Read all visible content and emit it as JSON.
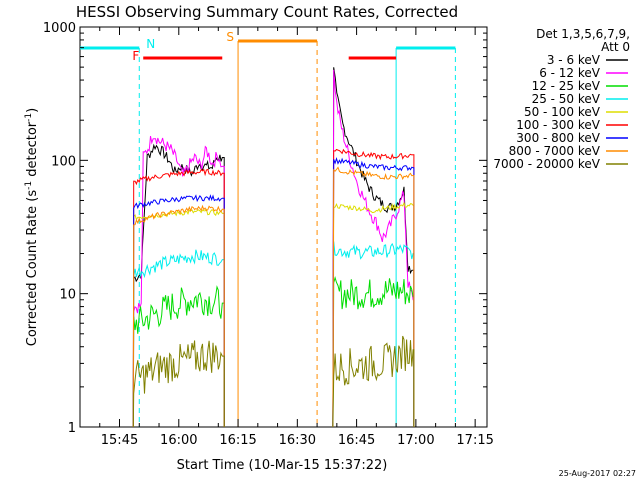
{
  "chart_data": {
    "type": "line",
    "title": "HESSI Observing Summary Count Rates, Corrected",
    "xlabel": "Start Time (10-Mar-15 15:37:22)",
    "ylabel": "Corrected Count Rate (s⁻¹ detector⁻¹)",
    "ylabel_main": "Corrected Count Rate (s",
    "ylabel_sup1": "-1",
    "ylabel_mid": " detector",
    "ylabel_sup2": "-1",
    "ylabel_end": ")",
    "yscale": "log",
    "ylim": [
      1,
      1000
    ],
    "yticks": [
      {
        "value": 1,
        "label": "1"
      },
      {
        "value": 10,
        "label": "10"
      },
      {
        "value": 100,
        "label": "100"
      },
      {
        "value": 1000,
        "label": "1000"
      }
    ],
    "xlim_minutes": [
      0,
      103
    ],
    "xticks": [
      {
        "minute": 10,
        "label": "15:45"
      },
      {
        "minute": 25,
        "label": "16:00"
      },
      {
        "minute": 40,
        "label": "16:15"
      },
      {
        "minute": 55,
        "label": "16:30"
      },
      {
        "minute": 70,
        "label": "16:45"
      },
      {
        "minute": 85,
        "label": "17:00"
      },
      {
        "minute": 100,
        "label": "17:15"
      }
    ],
    "legend_header": [
      "Det 1,3,5,6,7,9,",
      "Att 0"
    ],
    "legend_position": "top-right",
    "series": [
      {
        "name": "3 - 6 keV",
        "color": "#000000"
      },
      {
        "name": "6 - 12 keV",
        "color": "#ff00ff"
      },
      {
        "name": "12 - 25 keV",
        "color": "#00dd00"
      },
      {
        "name": "25 - 50 keV",
        "color": "#00eeee"
      },
      {
        "name": "50 - 100 keV",
        "color": "#dddd00"
      },
      {
        "name": "100 - 300 keV",
        "color": "#ff0000"
      },
      {
        "name": "300 - 800 keV",
        "color": "#0000ff"
      },
      {
        "name": "800 - 7000 keV",
        "color": "#ff8c00"
      },
      {
        "name": "7000 - 20000 keV",
        "color": "#808000"
      }
    ],
    "intervals": [
      {
        "label": "N",
        "color": "#00eeee",
        "minutes": [
          [
            -2,
            15
          ],
          [
            80,
            95
          ]
        ]
      },
      {
        "label": "F",
        "color": "#ff0000",
        "minutes": [
          [
            16,
            36
          ],
          [
            68,
            80
          ]
        ]
      },
      {
        "label": "S",
        "color": "#ff8c00",
        "minutes": [
          [
            40,
            60
          ]
        ]
      }
    ],
    "segments": [
      {
        "name": "3 - 6 keV",
        "minutes": [
          [
            13.5,
            36.5
          ],
          [
            64,
            84.5
          ]
        ],
        "points": [
          [
            13.6,
            13
          ],
          [
            15.5,
            14
          ],
          [
            17,
            105
          ],
          [
            19,
            130
          ],
          [
            21,
            115
          ],
          [
            22.5,
            100
          ],
          [
            24,
            82
          ],
          [
            25.5,
            90
          ],
          [
            27,
            85
          ],
          [
            28.5,
            80
          ],
          [
            30,
            95
          ],
          [
            32,
            90
          ],
          [
            33.5,
            88
          ],
          [
            34.5,
            105
          ],
          [
            36,
            105
          ],
          [
            64.2,
            520
          ],
          [
            65,
            300
          ],
          [
            66.5,
            185
          ],
          [
            68,
            140
          ],
          [
            70,
            100
          ],
          [
            72,
            72
          ],
          [
            73.5,
            60
          ],
          [
            75,
            52
          ],
          [
            76.5,
            47
          ],
          [
            78,
            44
          ],
          [
            80,
            46
          ],
          [
            82,
            60
          ],
          [
            83,
            16
          ],
          [
            84.3,
            15
          ]
        ]
      },
      {
        "name": "6 - 12 keV",
        "minutes": [
          [
            13.5,
            36.5
          ],
          [
            64,
            84.5
          ]
        ],
        "points": [
          [
            13.6,
            8
          ],
          [
            15.5,
            8
          ],
          [
            16,
            105
          ],
          [
            17.5,
            130
          ],
          [
            18.5,
            160
          ],
          [
            20,
            140
          ],
          [
            21.5,
            130
          ],
          [
            23,
            120
          ],
          [
            24.5,
            100
          ],
          [
            26,
            75
          ],
          [
            27.5,
            90
          ],
          [
            29,
            105
          ],
          [
            30.5,
            90
          ],
          [
            32,
            120
          ],
          [
            33.5,
            95
          ],
          [
            35,
            110
          ],
          [
            36,
            90
          ],
          [
            64.2,
            460
          ],
          [
            65,
            260
          ],
          [
            66.5,
            160
          ],
          [
            68,
            110
          ],
          [
            70,
            70
          ],
          [
            72,
            50
          ],
          [
            74,
            38
          ],
          [
            75.5,
            32
          ],
          [
            76.5,
            26
          ],
          [
            78,
            30
          ],
          [
            80,
            40
          ],
          [
            82,
            56
          ],
          [
            83,
            12
          ],
          [
            84.3,
            9
          ]
        ]
      },
      {
        "name": "12 - 25 keV",
        "minutes": [
          [
            13.5,
            36.5
          ],
          [
            64,
            84.5
          ]
        ],
        "points": [
          [
            13.6,
            6
          ],
          [
            16,
            6.3
          ],
          [
            18,
            6.8
          ],
          [
            20,
            7.2
          ],
          [
            22,
            7.8
          ],
          [
            24,
            8.2
          ],
          [
            26,
            8.6
          ],
          [
            28,
            9
          ],
          [
            30,
            9.3
          ],
          [
            32,
            9
          ],
          [
            34,
            8.8
          ],
          [
            36,
            8.5
          ],
          [
            64.2,
            10
          ],
          [
            66,
            10
          ],
          [
            70,
            10
          ],
          [
            74,
            10
          ],
          [
            78,
            10.5
          ],
          [
            82,
            10.5
          ],
          [
            84.3,
            9.5
          ]
        ]
      },
      {
        "name": "25 - 50 keV",
        "minutes": [
          [
            13.5,
            36.5
          ],
          [
            64,
            84.5
          ]
        ],
        "points": [
          [
            13.6,
            14.5
          ],
          [
            16,
            15
          ],
          [
            18,
            15.8
          ],
          [
            20,
            16.5
          ],
          [
            22,
            17.2
          ],
          [
            24,
            17.8
          ],
          [
            26,
            18.5
          ],
          [
            28,
            19
          ],
          [
            30,
            19.2
          ],
          [
            32,
            18.8
          ],
          [
            34,
            18.5
          ],
          [
            36,
            18
          ],
          [
            64.2,
            22
          ],
          [
            66,
            21
          ],
          [
            70,
            20.5
          ],
          [
            74,
            20.5
          ],
          [
            78,
            21
          ],
          [
            82,
            21.5
          ],
          [
            84.3,
            20
          ]
        ]
      },
      {
        "name": "50 - 100 keV",
        "minutes": [
          [
            13.5,
            36.5
          ],
          [
            64,
            84.5
          ]
        ],
        "points": [
          [
            13.6,
            37
          ],
          [
            16,
            38
          ],
          [
            20,
            39
          ],
          [
            24,
            40
          ],
          [
            28,
            41
          ],
          [
            32,
            41
          ],
          [
            36,
            40
          ],
          [
            64.2,
            46
          ],
          [
            66,
            45
          ],
          [
            70,
            44
          ],
          [
            72,
            43
          ],
          [
            74,
            42
          ],
          [
            76,
            43
          ],
          [
            78,
            44
          ],
          [
            80,
            45
          ],
          [
            82,
            46
          ],
          [
            84.3,
            46
          ]
        ]
      },
      {
        "name": "100 - 300 keV",
        "minutes": [
          [
            13.5,
            36.5
          ],
          [
            64,
            84.5
          ]
        ],
        "points": [
          [
            13.6,
            68
          ],
          [
            16,
            72
          ],
          [
            20,
            76
          ],
          [
            24,
            79
          ],
          [
            28,
            81
          ],
          [
            32,
            82
          ],
          [
            36,
            80
          ],
          [
            64.2,
            120
          ],
          [
            66,
            118
          ],
          [
            70,
            112
          ],
          [
            74,
            108
          ],
          [
            78,
            106
          ],
          [
            82,
            108
          ],
          [
            84.3,
            110
          ]
        ]
      },
      {
        "name": "300 - 800 keV",
        "minutes": [
          [
            13.5,
            36.5
          ],
          [
            64,
            84.5
          ]
        ],
        "points": [
          [
            13.6,
            45
          ],
          [
            16,
            47
          ],
          [
            20,
            49
          ],
          [
            24,
            51
          ],
          [
            28,
            52
          ],
          [
            32,
            52
          ],
          [
            36,
            52
          ],
          [
            64.2,
            100
          ],
          [
            66,
            98
          ],
          [
            70,
            94
          ],
          [
            74,
            90
          ],
          [
            78,
            88
          ],
          [
            82,
            88
          ],
          [
            84.3,
            88
          ]
        ]
      },
      {
        "name": "800 - 7000 keV",
        "minutes": [
          [
            13.5,
            36.5
          ],
          [
            64,
            84.5
          ]
        ],
        "points": [
          [
            13.6,
            34
          ],
          [
            16,
            36
          ],
          [
            20,
            39
          ],
          [
            24,
            41
          ],
          [
            28,
            43
          ],
          [
            32,
            44
          ],
          [
            36,
            43
          ],
          [
            64.2,
            86
          ],
          [
            66,
            84
          ],
          [
            70,
            80
          ],
          [
            74,
            77
          ],
          [
            78,
            75
          ],
          [
            82,
            76
          ],
          [
            84.3,
            77
          ]
        ]
      },
      {
        "name": "7000 - 20000 keV",
        "minutes": [
          [
            13.5,
            36.5
          ],
          [
            64,
            84.5
          ]
        ],
        "points": [
          [
            13.6,
            2.3
          ],
          [
            16,
            2.4
          ],
          [
            20,
            2.8
          ],
          [
            24,
            3
          ],
          [
            28,
            3.2
          ],
          [
            32,
            3.5
          ],
          [
            36,
            3.4
          ],
          [
            64.2,
            2.7
          ],
          [
            66,
            2.8
          ],
          [
            70,
            2.9
          ],
          [
            74,
            3
          ],
          [
            78,
            3.1
          ],
          [
            82,
            3.6
          ],
          [
            84.3,
            3.8
          ]
        ]
      }
    ],
    "footer_date": "25-Aug-2017 02:27"
  }
}
